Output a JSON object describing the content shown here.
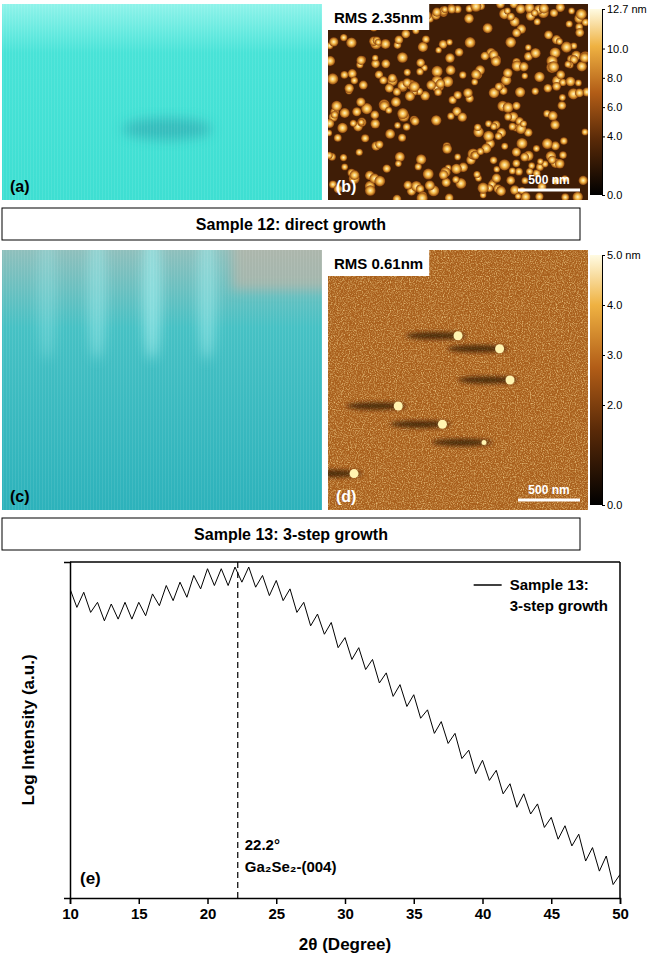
{
  "panels": [
    {
      "rheed_label": "(a)",
      "afm_label": "(b)",
      "rms": "RMS 2.35nm",
      "scale_bar": "500 nm",
      "colorbar": {
        "range": [
          0,
          12.7
        ],
        "ticks": [
          {
            "value": 12.7,
            "label": "12.7 nm"
          },
          {
            "value": 10,
            "label": "10.0"
          },
          {
            "value": 8,
            "label": "8.0"
          },
          {
            "value": 6,
            "label": "6.0"
          },
          {
            "value": 4,
            "label": "4.0"
          },
          {
            "value": 0,
            "label": "0.0"
          }
        ]
      },
      "caption": "Sample 12: direct growth"
    },
    {
      "rheed_label": "(c)",
      "afm_label": "(d)",
      "rms": "RMS 0.61nm",
      "scale_bar": "500 nm",
      "colorbar": {
        "range": [
          0,
          5
        ],
        "ticks": [
          {
            "value": 5,
            "label": "5.0 nm"
          },
          {
            "value": 4,
            "label": "4.0"
          },
          {
            "value": 3,
            "label": "3.0"
          },
          {
            "value": 2,
            "label": "2.0"
          },
          {
            "value": 0,
            "label": "0.0"
          }
        ]
      },
      "caption": "Sample 13: 3-step growth"
    }
  ],
  "chart_data": {
    "type": "line",
    "panel_label": "(e)",
    "xlabel": "2θ (Degree)",
    "ylabel": "Log Intensity (a.u.)",
    "x": [
      10,
      10.5,
      11,
      11.5,
      12,
      12.5,
      13,
      13.5,
      14,
      14.5,
      15,
      15.5,
      16,
      16.5,
      17,
      17.5,
      18,
      18.5,
      19,
      19.5,
      20,
      20.5,
      21,
      21.5,
      22,
      22.5,
      23,
      23.5,
      24,
      24.5,
      25,
      25.5,
      26,
      26.5,
      27,
      27.5,
      28,
      28.5,
      29,
      29.5,
      30,
      30.5,
      31,
      31.5,
      32,
      32.5,
      33,
      33.5,
      34,
      34.5,
      35,
      35.5,
      36,
      36.5,
      37,
      37.5,
      38,
      38.5,
      39,
      39.5,
      40,
      40.5,
      41,
      41.5,
      42,
      42.5,
      43,
      43.5,
      44,
      44.5,
      45,
      45.5,
      46,
      46.5,
      47,
      47.5,
      48,
      48.5,
      49,
      49.5,
      50
    ],
    "series": [
      {
        "name": "Sample 13: 3-step growth",
        "color": "#000000",
        "values": [
          92,
          86.5,
          91,
          85,
          88,
          82.5,
          87.5,
          83,
          88,
          83,
          88,
          84,
          90.5,
          87,
          93,
          88.5,
          94,
          89.5,
          96,
          92,
          98,
          93,
          98,
          93,
          98.5,
          94,
          98.5,
          92.5,
          96,
          90,
          94.5,
          88.5,
          92,
          85,
          88,
          81,
          84.5,
          78.5,
          82,
          74.5,
          77.5,
          71,
          74.5,
          68,
          71,
          64,
          67,
          60,
          63.5,
          57,
          60.5,
          53.5,
          56,
          49,
          52.5,
          46,
          49,
          41.5,
          44,
          37,
          41,
          35,
          38,
          31,
          34,
          27,
          31,
          25,
          28,
          21,
          24,
          17.5,
          21.5,
          15.5,
          19,
          11,
          15,
          8,
          12.5,
          4,
          7
        ]
      }
    ],
    "xlim": [
      10,
      50
    ],
    "xticks": [
      10,
      15,
      20,
      25,
      30,
      35,
      40,
      45,
      50
    ],
    "ylim": [
      0,
      100
    ],
    "tick_labels": "x",
    "legend": "top-right",
    "annotations": [
      {
        "x": 22.2,
        "line_style": "dashed",
        "texts": [
          "22.2°",
          "Ga₂Se₂-(004)"
        ]
      }
    ]
  }
}
